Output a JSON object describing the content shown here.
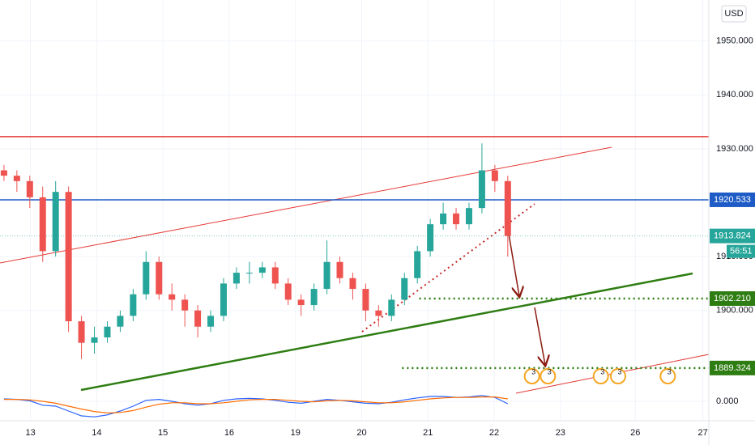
{
  "chart_data": {
    "type": "candlestick",
    "currency": "USD",
    "x": [
      -0.4,
      -0.205,
      -0.01,
      0.185,
      0.38,
      0.575,
      0.77,
      0.965,
      1.16,
      1.355,
      1.55,
      1.745,
      1.94,
      2.135,
      2.33,
      2.525,
      2.72,
      2.915,
      3.11,
      3.305,
      3.5,
      3.695,
      3.89,
      4.085,
      4.28,
      4.475,
      4.67,
      4.865,
      5.06,
      5.255,
      5.45,
      5.645,
      5.84,
      6.035,
      6.23,
      6.425,
      6.62,
      6.815,
      7.01,
      7.205
    ],
    "open": [
      1926,
      1925,
      1924,
      1921,
      1911,
      1922,
      1898,
      1894,
      1895,
      1897,
      1899,
      1903,
      1909,
      1903,
      1902,
      1900,
      1897,
      1899,
      1905,
      1907,
      1907,
      1908,
      1905,
      1902,
      1901,
      1904,
      1909,
      1906,
      1904,
      1900,
      1899,
      1902,
      1906,
      1911,
      1916,
      1918,
      1916,
      1919,
      1926,
      1924
    ],
    "high": [
      1927,
      1926,
      1925,
      1923,
      1924,
      1923,
      1899,
      1897,
      1898,
      1900,
      1904,
      1911,
      1910,
      1905,
      1903,
      1901,
      1900,
      1906,
      1908,
      1909,
      1909,
      1909,
      1906,
      1903,
      1905,
      1913,
      1910,
      1907,
      1905,
      1901,
      1903,
      1907,
      1912,
      1917,
      1920,
      1919,
      1920,
      1931,
      1927,
      1925
    ],
    "low": [
      1924,
      1922,
      1919,
      1909,
      1910,
      1896,
      1891,
      1892,
      1894,
      1896,
      1898,
      1902,
      1902,
      1900,
      1897,
      1895,
      1896,
      1898,
      1904,
      1905,
      1906,
      1904,
      1901,
      1899,
      1900,
      1903,
      1905,
      1902,
      1898,
      1897,
      1898,
      1901,
      1905,
      1910,
      1915,
      1915,
      1915,
      1918,
      1922,
      1910
    ],
    "close": [
      1925,
      1924,
      1921,
      1911,
      1922,
      1898,
      1894,
      1895,
      1897,
      1899,
      1903,
      1909,
      1903,
      1902,
      1900,
      1897,
      1899,
      1905,
      1907,
      1907,
      1908,
      1905,
      1902,
      1901,
      1904,
      1909,
      1906,
      1904,
      1900,
      1899,
      1902,
      1906,
      1911,
      1916,
      1918,
      1916,
      1919,
      1926,
      1924,
      1913.824
    ],
    "up_color": "#26a69a",
    "down_color": "#ef5350",
    "xlim": [
      -0.46,
      10.24
    ],
    "xticks": [
      {
        "value": 0,
        "label": "13"
      },
      {
        "value": 1,
        "label": "14"
      },
      {
        "value": 2,
        "label": "15"
      },
      {
        "value": 3,
        "label": "16"
      },
      {
        "value": 4,
        "label": "19"
      },
      {
        "value": 5,
        "label": "20"
      },
      {
        "value": 6,
        "label": "21"
      },
      {
        "value": 7,
        "label": "22"
      },
      {
        "value": 8,
        "label": "23"
      },
      {
        "value": 9.13,
        "label": "26"
      },
      {
        "value": 10.15,
        "label": "27"
      }
    ],
    "ylim": [
      1886,
      1957.6
    ],
    "yticks": [
      {
        "value": 1950,
        "label": "1950.000"
      },
      {
        "value": 1940,
        "label": "1940.000"
      },
      {
        "value": 1930,
        "label": "1930.000"
      },
      {
        "value": 1910,
        "label": "1910.000"
      },
      {
        "value": 1900,
        "label": "1900.000"
      }
    ],
    "price_lines": [
      {
        "value": 1932.25,
        "color": "#e53935",
        "style": "solid"
      },
      {
        "value": 1920.533,
        "label": "1920.533",
        "color": "#1e5bc6",
        "style": "solid"
      },
      {
        "value": 1902.21,
        "label": "1902.210",
        "color": "#2e7d12",
        "style": "dotted",
        "start": 5.87
      },
      {
        "value": 1889.324,
        "label": "1889.324",
        "color": "#2e7d12",
        "style": "dotted",
        "start": 5.61
      }
    ],
    "last_price": {
      "value": 1913.824,
      "label": "1913.824",
      "countdown": "56:51",
      "color": "#26a69a"
    },
    "macd": {
      "ylim": [
        -4,
        3
      ],
      "yticks": [
        {
          "value": 0,
          "label": "0.000"
        }
      ],
      "values": [
        0.5,
        0.4,
        0.1,
        -0.8,
        -1,
        -2,
        -3,
        -3.2,
        -2.8,
        -2,
        -1,
        0.2,
        0.4,
        0,
        -0.5,
        -0.8,
        -0.5,
        0.2,
        0.5,
        0.6,
        0.5,
        0.2,
        -0.2,
        -0.4,
        0,
        0.4,
        0.2,
        -0.1,
        -0.4,
        -0.5,
        -0.2,
        0.3,
        0.7,
        1,
        1,
        0.8,
        0.9,
        1.2,
        0.8,
        -0.5
      ],
      "signal": [
        0.4,
        0.4,
        0.3,
        0,
        -0.4,
        -1,
        -1.6,
        -2.1,
        -2.4,
        -2.3,
        -1.9,
        -1.2,
        -0.6,
        -0.3,
        -0.3,
        -0.5,
        -0.5,
        -0.3,
        0,
        0.3,
        0.4,
        0.4,
        0.2,
        0,
        -0.1,
        0.1,
        0.2,
        0.1,
        -0.1,
        -0.3,
        -0.3,
        -0.1,
        0.2,
        0.5,
        0.7,
        0.8,
        0.8,
        0.9,
        0.9,
        0.5
      ],
      "macd_color": "#2962ff",
      "signal_color": "#ff6d00"
    },
    "events": [
      {
        "x": 7.57,
        "label": "3"
      },
      {
        "x": 7.81,
        "label": "3"
      },
      {
        "x": 8.61,
        "label": "3"
      },
      {
        "x": 8.87,
        "label": "3"
      },
      {
        "x": 9.62,
        "label": "3"
      }
    ]
  }
}
